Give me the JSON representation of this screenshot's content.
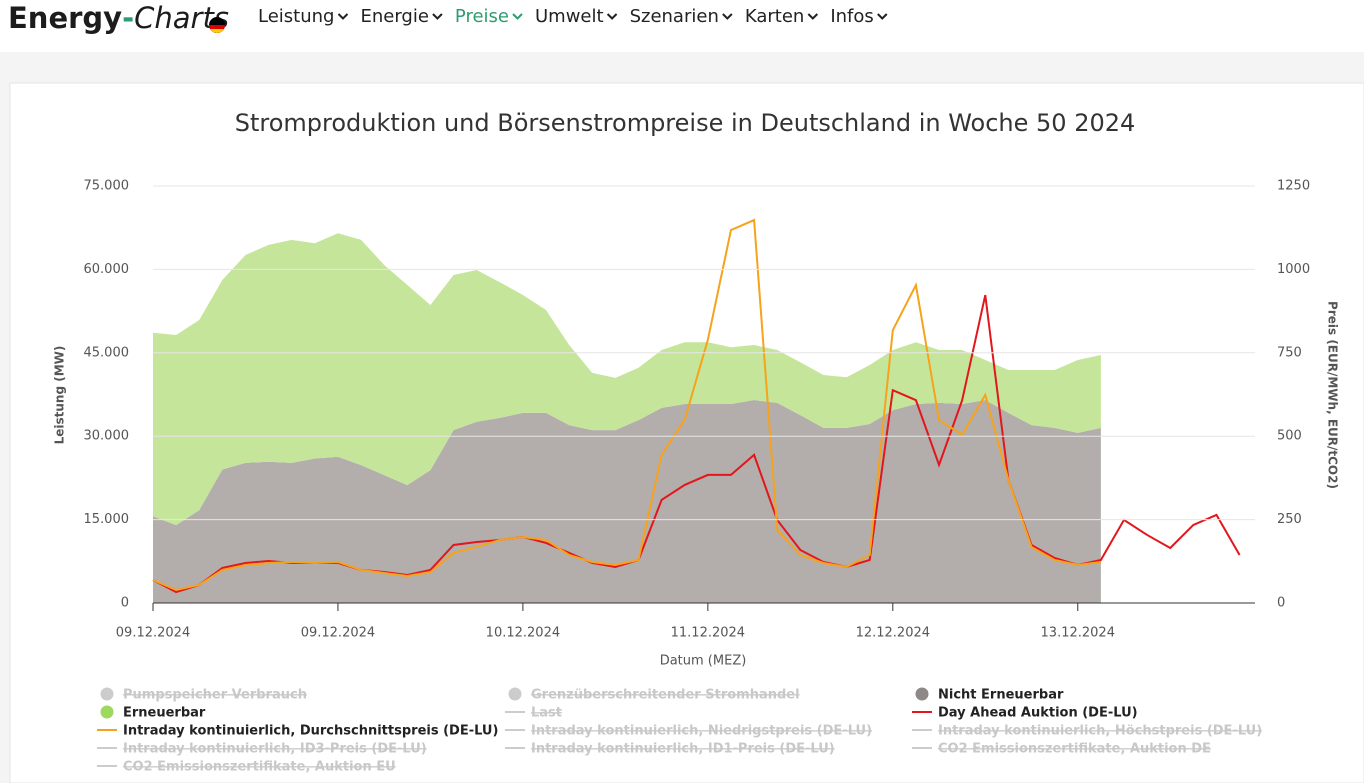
{
  "header": {
    "logo": [
      "Energy",
      "-",
      "Charts"
    ],
    "nav": [
      "Leistung",
      "Energie",
      "Preise",
      "Umwelt",
      "Szenarien",
      "Karten",
      "Infos"
    ],
    "active": 2
  },
  "chart_data": {
    "type": "area",
    "title": "Stromproduktion und Börsenstrompreise in Deutschland in Woche 50 2024",
    "xlabel": "Datum (MEZ)",
    "ylabel": "Leistung (MW)",
    "y2label": "Preis (EUR/MWh, EUR/tCO2)",
    "xlim": [
      0,
      143
    ],
    "xticks": [
      {
        "value": 0,
        "label": "09.12.2024"
      },
      {
        "value": 24,
        "label": "09.12.2024"
      },
      {
        "value": 48,
        "label": "10.12.2024"
      },
      {
        "value": 72,
        "label": "11.12.2024"
      },
      {
        "value": 96,
        "label": "12.12.2024"
      },
      {
        "value": 120,
        "label": "13.12.2024"
      }
    ],
    "ylim": [
      0,
      75000
    ],
    "yticks": [
      0,
      {
        "value": 15000,
        "label": "15.000"
      },
      {
        "value": 30000,
        "label": "30.000"
      },
      {
        "value": 45000,
        "label": "45.000"
      },
      {
        "value": 60000,
        "label": "60.000"
      },
      {
        "value": 75000,
        "label": "75.000"
      }
    ],
    "y2lim": [
      0,
      1250
    ],
    "y2ticks": [
      0,
      250,
      500,
      750,
      1000,
      1250
    ],
    "grid": true,
    "stacked": true,
    "series": [
      {
        "name": "Pumpspeicher Verbrauch",
        "kind": "area",
        "visible": false
      },
      {
        "name": "Grenzüberschreitender Stromhandel",
        "kind": "area",
        "visible": false
      },
      {
        "name": "Nicht Erneuerbar",
        "kind": "area",
        "visible": true,
        "color": "#b3aeab",
        "legend_color": "#8e8886",
        "x": [
          0,
          3,
          6,
          9,
          12,
          15,
          18,
          21,
          24,
          27,
          30,
          33,
          36,
          39,
          42,
          45,
          48,
          51,
          54,
          57,
          60,
          63,
          66,
          69,
          72,
          75,
          78,
          81,
          84,
          87,
          90,
          93,
          96,
          99,
          102,
          105,
          108,
          111,
          114,
          117,
          120,
          123
        ],
        "values": [
          15600,
          14000,
          16700,
          24000,
          25200,
          25400,
          25200,
          26000,
          26300,
          24800,
          23000,
          21200,
          23900,
          31100,
          32600,
          33300,
          34200,
          34200,
          32000,
          31100,
          31100,
          32900,
          35100,
          35800,
          35800,
          35800,
          36500,
          36000,
          33800,
          31500,
          31500,
          32200,
          34700,
          35800,
          36000,
          35800,
          36500,
          34200,
          32000,
          31500,
          30600,
          31500
        ]
      },
      {
        "name": "Erneuerbar",
        "kind": "area",
        "visible": true,
        "color": "#c5e69a",
        "legend_color": "#9ed85c",
        "x": [
          0,
          3,
          6,
          9,
          12,
          15,
          18,
          21,
          24,
          27,
          30,
          33,
          36,
          39,
          42,
          45,
          48,
          51,
          54,
          57,
          60,
          63,
          66,
          69,
          72,
          75,
          78,
          81,
          84,
          87,
          90,
          93,
          96,
          99,
          102,
          105,
          108,
          111,
          114,
          117,
          120,
          123
        ],
        "values": [
          33000,
          34200,
          34200,
          34100,
          37400,
          39000,
          40100,
          38700,
          40200,
          40500,
          37800,
          36000,
          29700,
          27900,
          27300,
          24400,
          21200,
          18500,
          14400,
          10300,
          9400,
          9400,
          10400,
          11100,
          11100,
          10200,
          9900,
          9500,
          9500,
          9500,
          9100,
          10600,
          10800,
          11100,
          9500,
          9700,
          7200,
          7700,
          9900,
          10400,
          13100,
          13100
        ]
      },
      {
        "name": "Last",
        "kind": "line",
        "visible": false
      },
      {
        "name": "Day Ahead Auktion (DE-LU)",
        "kind": "line",
        "visible": true,
        "axis": "y2",
        "color": "#e3161c",
        "x": [
          0,
          3,
          6,
          9,
          12,
          15,
          18,
          21,
          24,
          27,
          30,
          33,
          36,
          39,
          42,
          45,
          48,
          51,
          54,
          57,
          60,
          63,
          66,
          69,
          72,
          75,
          78,
          81,
          84,
          87,
          90,
          93,
          96,
          99,
          102,
          105,
          108,
          111,
          114,
          117,
          120,
          123,
          126,
          129,
          132,
          135,
          138,
          141
        ],
        "values": [
          69,
          33,
          54,
          105,
          120,
          126,
          120,
          120,
          120,
          99,
          93,
          84,
          99,
          174,
          183,
          189,
          198,
          180,
          150,
          120,
          108,
          129,
          309,
          354,
          384,
          384,
          444,
          249,
          159,
          123,
          108,
          129,
          638,
          608,
          414,
          608,
          923,
          369,
          174,
          135,
          114,
          129,
          249,
          204,
          165,
          234,
          264,
          144
        ]
      },
      {
        "name": "Intraday kontinuierlich, Durchschnittspreis (DE-LU)",
        "kind": "line",
        "visible": true,
        "axis": "y2",
        "color": "#f7a21b",
        "x": [
          0,
          3,
          6,
          9,
          12,
          15,
          18,
          21,
          24,
          27,
          30,
          33,
          36,
          39,
          42,
          45,
          48,
          51,
          54,
          57,
          60,
          63,
          66,
          69,
          72,
          75,
          78,
          81,
          84,
          87,
          90,
          93,
          96,
          99,
          102,
          105,
          108,
          111,
          114,
          117,
          120,
          123
        ],
        "values": [
          69,
          39,
          54,
          99,
          114,
          120,
          123,
          120,
          123,
          99,
          90,
          81,
          93,
          150,
          168,
          189,
          198,
          189,
          144,
          123,
          114,
          129,
          444,
          549,
          789,
          1118,
          1148,
          219,
          144,
          120,
          108,
          144,
          818,
          953,
          549,
          504,
          624,
          369,
          168,
          129,
          114,
          123
        ]
      },
      {
        "name": "Intraday kontinuierlich, Niedrigstpreis (DE-LU)",
        "kind": "line",
        "visible": false
      },
      {
        "name": "Intraday kontinuierlich, Höchstpreis (DE-LU)",
        "kind": "line",
        "visible": false
      },
      {
        "name": "Intraday kontinuierlich, ID3-Preis (DE-LU)",
        "kind": "line",
        "visible": false
      },
      {
        "name": "Intraday kontinuierlich, ID1-Preis (DE-LU)",
        "kind": "line",
        "visible": false
      },
      {
        "name": "CO2 Emissionszertifikate, Auktion DE",
        "kind": "line",
        "visible": false
      },
      {
        "name": "CO2 Emissionszertifikate, Auktion EU",
        "kind": "line",
        "visible": false
      }
    ]
  }
}
